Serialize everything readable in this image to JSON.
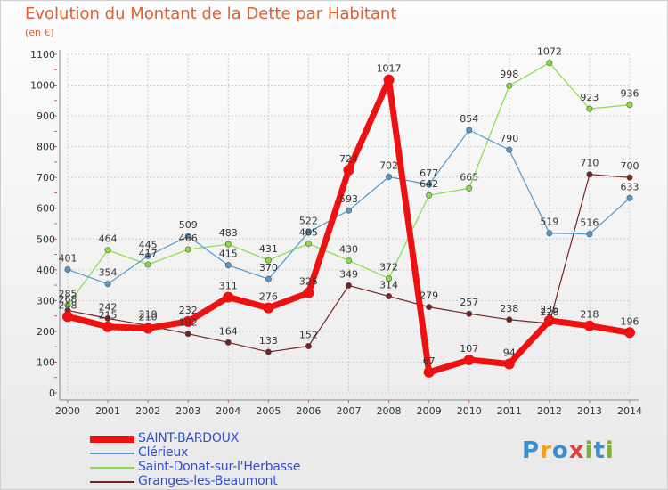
{
  "title": "Evolution du Montant de la Dette par Habitant",
  "unit_label": "(en €)",
  "logo": {
    "text": "Proxiti",
    "letters": [
      {
        "ch": "P",
        "color": "#3a8fd0"
      },
      {
        "ch": "r",
        "color": "#f0a020"
      },
      {
        "ch": "o",
        "color": "#3a8fd0"
      },
      {
        "ch": "x",
        "color": "#e04040"
      },
      {
        "ch": "i",
        "color": "#80b030"
      },
      {
        "ch": "t",
        "color": "#3a8fd0"
      },
      {
        "ch": "i",
        "color": "#80b030"
      }
    ]
  },
  "chart_data": {
    "type": "line",
    "x": [
      "2000",
      "2001",
      "2002",
      "2003",
      "2004",
      "2005",
      "2006",
      "2007",
      "2008",
      "2009",
      "2010",
      "2011",
      "2012",
      "2013",
      "2014"
    ],
    "ylim": [
      0,
      1100
    ],
    "yticks": [
      0,
      100,
      200,
      300,
      400,
      500,
      600,
      700,
      800,
      900,
      1000,
      1100
    ],
    "grid": true,
    "legend_position": "bottom-left",
    "series": [
      {
        "name": "SAINT-BARDOUX",
        "color": "#ee1111",
        "values": [
          248,
          215,
          210,
          232,
          311,
          276,
          325,
          724,
          1017,
          67,
          107,
          94,
          235,
          218,
          196
        ]
      },
      {
        "name": "Clérieux",
        "color": "#5599cc",
        "values": [
          401,
          354,
          445,
          509,
          415,
          370,
          522,
          593,
          702,
          677,
          854,
          790,
          519,
          516,
          633
        ]
      },
      {
        "name": "Saint-Donat-sur-l'Herbasse",
        "color": "#88dd44",
        "values": [
          285,
          464,
          417,
          466,
          483,
          431,
          485,
          430,
          372,
          642,
          665,
          998,
          1072,
          923,
          936
        ]
      },
      {
        "name": "Granges-les-Beaumont",
        "color": "#772222",
        "values": [
          268,
          242,
          219,
          192,
          164,
          133,
          152,
          349,
          314,
          279,
          257,
          238,
          226,
          710,
          700
        ]
      }
    ]
  }
}
